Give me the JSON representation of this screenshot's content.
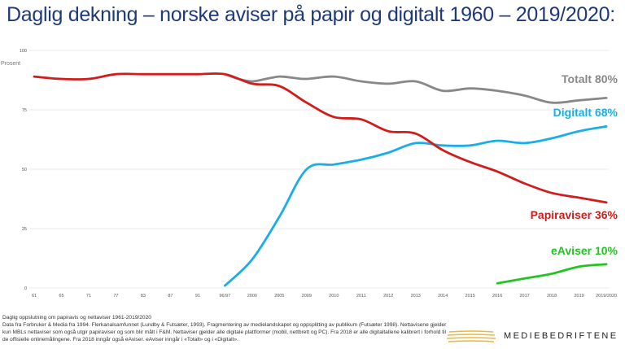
{
  "chart_data": {
    "type": "line",
    "title": "Daglig dekning – norske aviser på papir og digitalt 1960 – 2019/2020:",
    "ylabel": "Prosent",
    "ylim": [
      0,
      100
    ],
    "yticks": [
      "0",
      "25",
      "50",
      "75",
      "100"
    ],
    "categories": [
      "61",
      "65",
      "71",
      "77",
      "83",
      "87",
      "91",
      "96/97",
      "2000",
      "2005",
      "2009",
      "2010",
      "2011",
      "2012",
      "2013",
      "2014",
      "2015",
      "2016",
      "2017",
      "2018",
      "2019",
      "2019/2020"
    ],
    "grid": "horizontal",
    "legend": "inline labels at line ends",
    "series": [
      {
        "name": "Totalt 80%",
        "color": "#888888",
        "points": [
          [
            7,
            90
          ],
          [
            7.5,
            88
          ],
          [
            8,
            87
          ],
          [
            8.5,
            88
          ],
          [
            9,
            89
          ],
          [
            9.5,
            88.5
          ],
          [
            10,
            88
          ],
          [
            11,
            89
          ],
          [
            12,
            87
          ],
          [
            13,
            86
          ],
          [
            14,
            87
          ],
          [
            15,
            83
          ],
          [
            16,
            84
          ],
          [
            17,
            83
          ],
          [
            18,
            81
          ],
          [
            19,
            78
          ],
          [
            20,
            79
          ],
          [
            21,
            80
          ]
        ]
      },
      {
        "name": "Digitalt 68%",
        "color": "#1aaee8",
        "points": [
          [
            7,
            1
          ],
          [
            8,
            12
          ],
          [
            9,
            30
          ],
          [
            10,
            50
          ],
          [
            11,
            52
          ],
          [
            12,
            54
          ],
          [
            13,
            57
          ],
          [
            14,
            61
          ],
          [
            15,
            60
          ],
          [
            16,
            60
          ],
          [
            17,
            62
          ],
          [
            18,
            61
          ],
          [
            19,
            63
          ],
          [
            20,
            66
          ],
          [
            21,
            68
          ]
        ]
      },
      {
        "name": "Papiraviser 36%",
        "color": "#d11c1c",
        "points": [
          [
            0,
            89
          ],
          [
            1,
            88
          ],
          [
            2,
            88
          ],
          [
            3,
            90
          ],
          [
            4,
            90
          ],
          [
            5,
            90
          ],
          [
            6,
            90
          ],
          [
            7,
            90
          ],
          [
            8,
            86
          ],
          [
            9,
            85
          ],
          [
            10,
            78
          ],
          [
            11,
            72
          ],
          [
            12,
            71
          ],
          [
            13,
            66
          ],
          [
            14,
            65
          ],
          [
            15,
            58
          ],
          [
            16,
            53
          ],
          [
            17,
            49
          ],
          [
            18,
            44
          ],
          [
            19,
            40
          ],
          [
            20,
            38
          ],
          [
            21,
            36
          ]
        ]
      },
      {
        "name": "eAviser 10%",
        "color": "#22c422",
        "points": [
          [
            17,
            2
          ],
          [
            18,
            4
          ],
          [
            19,
            6
          ],
          [
            20,
            9
          ],
          [
            21,
            10
          ]
        ]
      }
    ]
  },
  "footnote": {
    "line1": "Daglig oppslutning om papiravis og nettaviser 1961-2019/2020",
    "line2": "Data fra Forbruker & Media fra 1994. Flerkanalsamfunnet (Lundby & Futsæter, 1993). Fragmentering av medielandskapet og oppsplitting av publikum (Futsæter 1998). Nettavisene gjelder kun MBLs nettaviser som også utgir papiraviser og som blir målt i F&M. Nettaviser gjelder alle digitale plattformer (mobil, nettbrett og PC). Fra 2018 er alle digitaltallene kalibrert i forhold til de offisielle onlinemålingene. Fra 2018 inngår også eAviser. eAviser inngår i «Totalt» og i «Digitalt»."
  },
  "brand": {
    "name": "MEDIEBEDRIFTENE",
    "color": "#f0b830"
  }
}
